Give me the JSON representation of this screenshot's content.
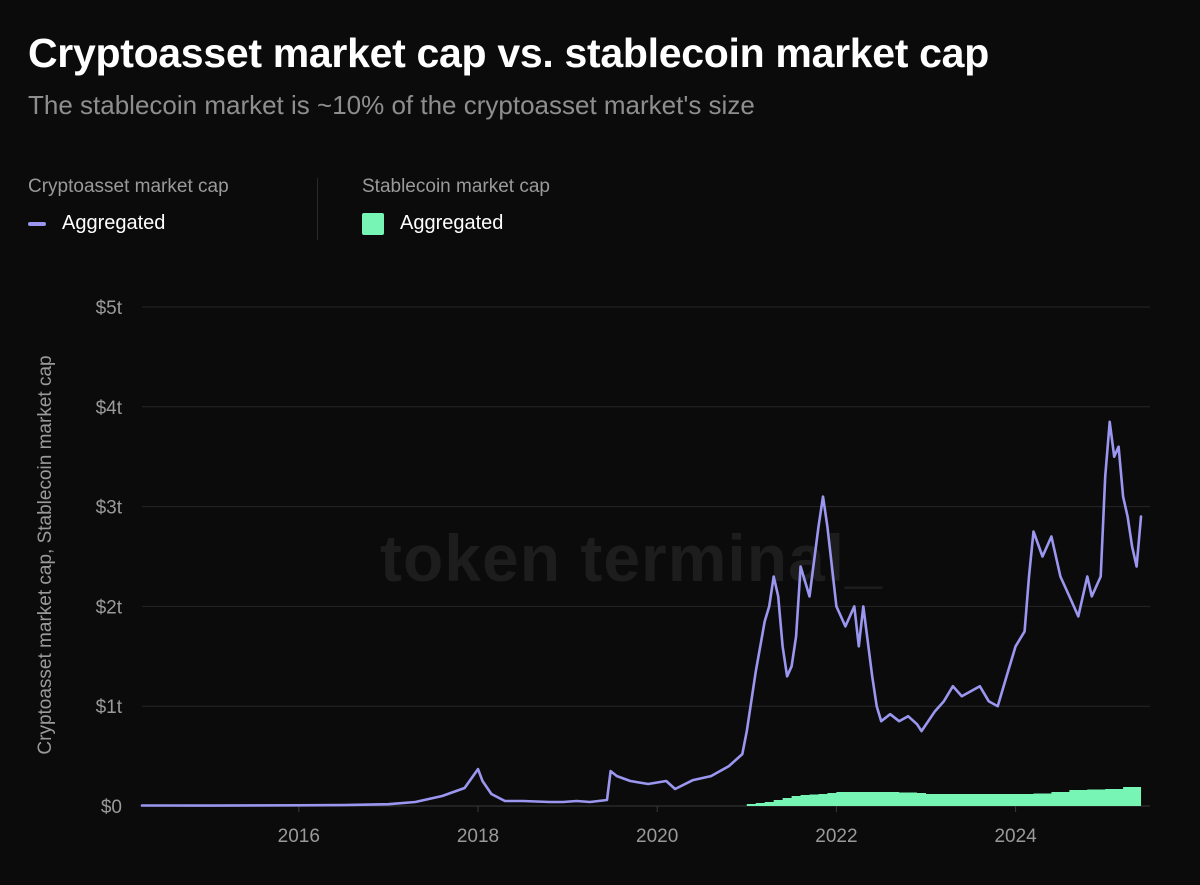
{
  "title": "Cryptoasset market cap vs. stablecoin market cap",
  "subtitle": "The stablecoin market is ~10% of the cryptoasset market's size",
  "watermark": "token terminal_",
  "legend": {
    "groups": [
      {
        "title": "Cryptoasset market cap",
        "item": "Aggregated",
        "marker": "line",
        "color": "#9b97f0"
      },
      {
        "title": "Stablecoin market cap",
        "item": "Aggregated",
        "marker": "swatch",
        "color": "#77f5b5"
      }
    ]
  },
  "chart_data": {
    "type": "line",
    "ylabel": "Cryptoasset market cap, Stablecoin market cap",
    "xlabel": "",
    "x_ticks": [
      "2016",
      "2018",
      "2020",
      "2022",
      "2024"
    ],
    "y_ticks": [
      "$0",
      "$1t",
      "$2t",
      "$3t",
      "$4t",
      "$5t"
    ],
    "xlim": [
      2014.25,
      2025.5
    ],
    "ylim": [
      0,
      5
    ],
    "y_unit": "trillion USD",
    "grid": true,
    "legend_position": "top-left",
    "series": [
      {
        "name": "Cryptoasset market cap",
        "label": "Aggregated",
        "type": "line",
        "color": "#9b97f0",
        "x": [
          2014.25,
          2015.0,
          2016.0,
          2016.5,
          2017.0,
          2017.3,
          2017.6,
          2017.85,
          2018.0,
          2018.05,
          2018.15,
          2018.3,
          2018.5,
          2018.8,
          2018.95,
          2019.1,
          2019.25,
          2019.44,
          2019.48,
          2019.55,
          2019.7,
          2019.9,
          2020.1,
          2020.2,
          2020.4,
          2020.6,
          2020.8,
          2020.95,
          2021.0,
          2021.1,
          2021.2,
          2021.25,
          2021.3,
          2021.35,
          2021.4,
          2021.45,
          2021.5,
          2021.55,
          2021.6,
          2021.7,
          2021.8,
          2021.85,
          2021.9,
          2022.0,
          2022.1,
          2022.2,
          2022.25,
          2022.3,
          2022.4,
          2022.45,
          2022.5,
          2022.6,
          2022.7,
          2022.8,
          2022.9,
          2022.95,
          2023.1,
          2023.2,
          2023.3,
          2023.4,
          2023.5,
          2023.6,
          2023.7,
          2023.8,
          2023.9,
          2024.0,
          2024.1,
          2024.15,
          2024.2,
          2024.3,
          2024.4,
          2024.5,
          2024.6,
          2024.7,
          2024.8,
          2024.85,
          2024.95,
          2025.0,
          2025.05,
          2025.1,
          2025.15,
          2025.2,
          2025.25,
          2025.3,
          2025.35,
          2025.4
        ],
        "values": [
          0.005,
          0.004,
          0.007,
          0.009,
          0.018,
          0.04,
          0.1,
          0.18,
          0.37,
          0.25,
          0.12,
          0.05,
          0.05,
          0.04,
          0.04,
          0.05,
          0.04,
          0.06,
          0.35,
          0.3,
          0.25,
          0.22,
          0.25,
          0.17,
          0.26,
          0.3,
          0.4,
          0.52,
          0.75,
          1.35,
          1.85,
          2.0,
          2.3,
          2.1,
          1.6,
          1.3,
          1.4,
          1.7,
          2.4,
          2.1,
          2.8,
          3.1,
          2.8,
          2.0,
          1.8,
          2.0,
          1.6,
          2.0,
          1.3,
          1.0,
          0.85,
          0.92,
          0.85,
          0.9,
          0.82,
          0.75,
          0.95,
          1.05,
          1.2,
          1.1,
          1.15,
          1.2,
          1.05,
          1.0,
          1.3,
          1.6,
          1.75,
          2.3,
          2.75,
          2.5,
          2.7,
          2.3,
          2.1,
          1.9,
          2.3,
          2.1,
          2.3,
          3.3,
          3.85,
          3.5,
          3.6,
          3.1,
          2.9,
          2.6,
          2.4,
          2.9
        ]
      },
      {
        "name": "Stablecoin market cap",
        "label": "Aggregated",
        "type": "area",
        "color": "#77f5b5",
        "x": [
          2020.9,
          2021.0,
          2021.1,
          2021.2,
          2021.3,
          2021.4,
          2021.5,
          2021.6,
          2021.7,
          2021.8,
          2021.9,
          2022.0,
          2022.1,
          2022.2,
          2022.3,
          2022.5,
          2022.7,
          2022.9,
          2023.0,
          2023.2,
          2023.4,
          2023.6,
          2023.8,
          2024.0,
          2024.2,
          2024.4,
          2024.6,
          2024.8,
          2025.0,
          2025.2,
          2025.4
        ],
        "values": [
          0.0,
          0.02,
          0.03,
          0.04,
          0.06,
          0.08,
          0.1,
          0.11,
          0.115,
          0.12,
          0.13,
          0.14,
          0.14,
          0.14,
          0.14,
          0.14,
          0.135,
          0.13,
          0.12,
          0.12,
          0.12,
          0.12,
          0.12,
          0.12,
          0.125,
          0.14,
          0.16,
          0.165,
          0.17,
          0.19,
          0.21
        ]
      }
    ]
  }
}
